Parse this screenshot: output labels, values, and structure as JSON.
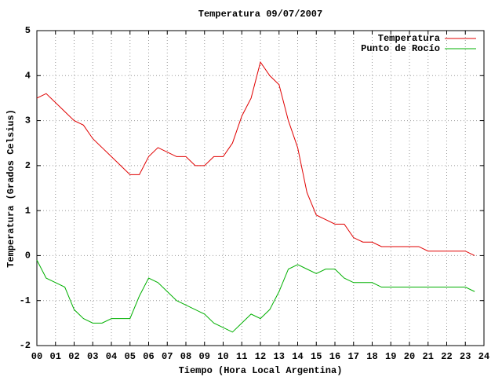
{
  "chart_data": {
    "type": "line",
    "title": "Temperatura 09/07/2007",
    "x_label": "Tiempo (Hora Local Argentina)",
    "y_label": "Temperatura (Grados Celsius)",
    "x": [
      0,
      0.5,
      1,
      1.5,
      2,
      2.5,
      3,
      3.5,
      4,
      4.5,
      5,
      5.5,
      6,
      6.5,
      7,
      7.5,
      8,
      8.5,
      9,
      9.5,
      10,
      10.5,
      11,
      11.5,
      12,
      12.5,
      13,
      13.5,
      14,
      14.5,
      15,
      15.5,
      16,
      16.5,
      17,
      17.5,
      18,
      18.5,
      19,
      19.5,
      20,
      20.5,
      21,
      21.5,
      22,
      22.5,
      23,
      23.5
    ],
    "series": [
      {
        "name": "Temperatura",
        "color": "#e00000",
        "values": [
          3.5,
          3.6,
          3.4,
          3.2,
          3.0,
          2.9,
          2.6,
          2.4,
          2.2,
          2.0,
          1.8,
          1.8,
          2.2,
          2.4,
          2.3,
          2.2,
          2.2,
          2.0,
          2.0,
          2.2,
          2.2,
          2.5,
          3.1,
          3.5,
          4.3,
          4.0,
          3.8,
          3.0,
          2.4,
          1.4,
          0.9,
          0.8,
          0.7,
          0.7,
          0.4,
          0.3,
          0.3,
          0.2,
          0.2,
          0.2,
          0.2,
          0.2,
          0.1,
          0.1,
          0.1,
          0.1,
          0.1,
          0.0
        ]
      },
      {
        "name": "Punto de Rocío",
        "color": "#00b000",
        "values": [
          -0.1,
          -0.5,
          -0.6,
          -0.7,
          -1.2,
          -1.4,
          -1.5,
          -1.5,
          -1.4,
          -1.4,
          -1.4,
          -0.9,
          -0.5,
          -0.6,
          -0.8,
          -1.0,
          -1.1,
          -1.2,
          -1.3,
          -1.5,
          -1.6,
          -1.7,
          -1.5,
          -1.3,
          -1.4,
          -1.2,
          -0.8,
          -0.3,
          -0.2,
          -0.3,
          -0.4,
          -0.3,
          -0.3,
          -0.5,
          -0.6,
          -0.6,
          -0.6,
          -0.7,
          -0.7,
          -0.7,
          -0.7,
          -0.7,
          -0.7,
          -0.7,
          -0.7,
          -0.7,
          -0.7,
          -0.8
        ]
      }
    ],
    "xlim": [
      0,
      24
    ],
    "xticks": [
      {
        "value": 0,
        "label": "00"
      },
      {
        "value": 1,
        "label": "01"
      },
      {
        "value": 2,
        "label": "02"
      },
      {
        "value": 3,
        "label": "03"
      },
      {
        "value": 4,
        "label": "04"
      },
      {
        "value": 5,
        "label": "05"
      },
      {
        "value": 6,
        "label": "06"
      },
      {
        "value": 7,
        "label": "07"
      },
      {
        "value": 8,
        "label": "08"
      },
      {
        "value": 9,
        "label": "09"
      },
      10,
      11,
      12,
      13,
      14,
      15,
      16,
      17,
      18,
      19,
      20,
      21,
      22,
      23,
      24
    ],
    "ylim": [
      -2,
      5
    ],
    "yticks": [
      -2,
      -1,
      0,
      1,
      2,
      3,
      4,
      5
    ],
    "grid": true,
    "legend": "top-right"
  }
}
